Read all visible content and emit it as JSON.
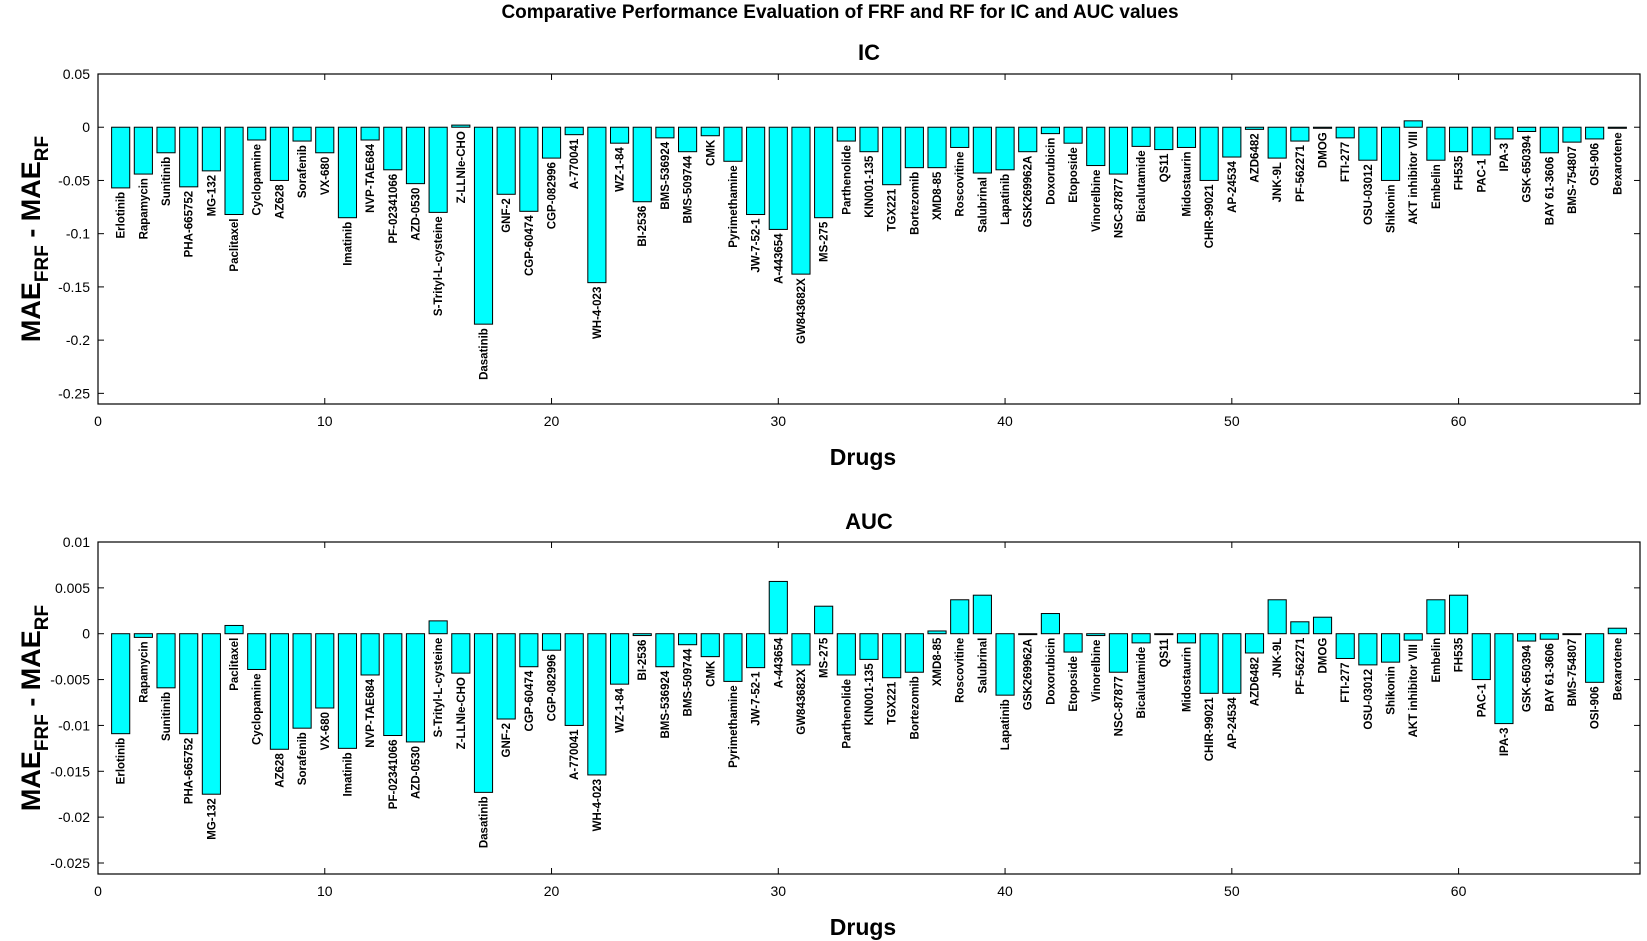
{
  "chart_data": {
    "type": "bar",
    "title": "Comparative Performance Evaluation of FRF and RF for IC and AUC values",
    "drugs": [
      "Erlotinib",
      "Rapamycin",
      "Sunitinib",
      "PHA-665752",
      "MG-132",
      "Paclitaxel",
      "Cyclopamine",
      "AZ628",
      "Sorafenib",
      "VX-680",
      "Imatinib",
      "NVP-TAE684",
      "PF-02341066",
      "AZD-0530",
      "S-Trityl-L-cysteine",
      "Z-LLNle-CHO",
      "Dasatinib",
      "GNF-2",
      "CGP-60474",
      "CGP-082996",
      "A-770041",
      "WH-4-023",
      "WZ-1-84",
      "BI-2536",
      "BMS-536924",
      "BMS-509744",
      "CMK",
      "Pyrimethamine",
      "JW-7-52-1",
      "A-443654",
      "GW843682X",
      "MS-275",
      "Parthenolide",
      "KIN001-135",
      "TGX221",
      "Bortezomib",
      "XMD8-85",
      "Roscovitine",
      "Salubrinal",
      "Lapatinib",
      "GSK269962A",
      "Doxorubicin",
      "Etoposide",
      "Vinorelbine",
      "NSC-87877",
      "Bicalutamide",
      "QS11",
      "Midostaurin",
      "CHIR-99021",
      "AP-24534",
      "AZD6482",
      "JNK-9L",
      "PF-562271",
      "DMOG",
      "FTI-277",
      "OSU-03012",
      "Shikonin",
      "AKT inhibitor VIII",
      "Embelin",
      "FH535",
      "PAC-1",
      "IPA-3",
      "GSK-650394",
      "BAY 61-3606",
      "BMS-754807",
      "OSI-906",
      "Bexarotene"
    ],
    "charts": [
      {
        "title": "IC",
        "xlabel": "Drugs",
        "ylabel_main": "MAE",
        "ylabel_sub1": "FRF",
        "ylabel_mid": " - MAE",
        "ylabel_sub2": "RF",
        "xlim": [
          0,
          68
        ],
        "ylim": [
          -0.26,
          0.05
        ],
        "yticks": [
          0.05,
          0,
          -0.05,
          -0.1,
          -0.15,
          -0.2,
          -0.25
        ],
        "ytick_labels": [
          "0.05",
          "0",
          "-0.05",
          "-0.1",
          "-0.15",
          "-0.2",
          "-0.25"
        ],
        "xticks": [
          0,
          10,
          20,
          30,
          40,
          50,
          60
        ],
        "xtick_labels": [
          "0",
          "10",
          "20",
          "30",
          "40",
          "50",
          "60"
        ],
        "label_anchor": "axis",
        "values": [
          -0.057,
          -0.044,
          -0.024,
          -0.056,
          -0.041,
          -0.082,
          -0.012,
          -0.05,
          -0.013,
          -0.024,
          -0.085,
          -0.012,
          -0.04,
          -0.053,
          -0.08,
          0.002,
          -0.185,
          -0.063,
          -0.079,
          -0.029,
          -0.007,
          -0.146,
          -0.015,
          -0.07,
          -0.01,
          -0.023,
          -0.008,
          -0.032,
          -0.082,
          -0.096,
          -0.138,
          -0.085,
          -0.013,
          -0.023,
          -0.054,
          -0.038,
          -0.038,
          -0.019,
          -0.043,
          -0.04,
          -0.023,
          -0.006,
          -0.015,
          -0.036,
          -0.044,
          -0.018,
          -0.021,
          -0.019,
          -0.05,
          -0.028,
          -0.002,
          -0.029,
          -0.013,
          -0.001,
          -0.01,
          -0.031,
          -0.05,
          0.006,
          -0.031,
          -0.023,
          -0.026,
          -0.011,
          -0.004,
          -0.024,
          -0.014,
          -0.011,
          -0.001
        ]
      },
      {
        "title": "AUC",
        "xlabel": "Drugs",
        "ylabel_main": "MAE",
        "ylabel_sub1": "FRF",
        "ylabel_mid": " - MAE",
        "ylabel_sub2": "RF",
        "xlim": [
          0,
          68
        ],
        "ylim": [
          -0.0262,
          0.01
        ],
        "yticks": [
          0.01,
          0.005,
          0,
          -0.005,
          -0.01,
          -0.015,
          -0.02,
          -0.025
        ],
        "ytick_labels": [
          "0.01",
          "0.005",
          "0",
          "-0.005",
          "-0.01",
          "-0.015",
          "-0.02",
          "-0.025"
        ],
        "xticks": [
          0,
          10,
          20,
          30,
          40,
          50,
          60
        ],
        "xtick_labels": [
          "0",
          "10",
          "20",
          "30",
          "40",
          "50",
          "60"
        ],
        "label_anchor": "bar",
        "values": [
          -0.0109,
          -0.0004,
          -0.0059,
          -0.0109,
          -0.0175,
          0.0009,
          -0.0039,
          -0.0126,
          -0.0103,
          -0.0081,
          -0.0125,
          -0.0045,
          -0.0111,
          -0.0118,
          0.0014,
          -0.0043,
          -0.0173,
          -0.0093,
          -0.0036,
          -0.0018,
          -0.01,
          -0.0154,
          -0.0055,
          -0.0002,
          -0.0036,
          -0.0012,
          -0.0025,
          -0.0052,
          -0.0037,
          0.0057,
          -0.0034,
          0.003,
          -0.0045,
          -0.0028,
          -0.0048,
          -0.0042,
          0.0003,
          0.0037,
          0.0042,
          -0.0067,
          -0.0001,
          0.0022,
          -0.002,
          -0.0002,
          -0.0042,
          -0.001,
          -0.0001,
          -0.001,
          -0.0065,
          -0.0065,
          -0.0021,
          0.0037,
          0.0013,
          0.0018,
          -0.0027,
          -0.0034,
          -0.0031,
          -0.0007,
          0.0037,
          0.0042,
          -0.005,
          -0.0098,
          -0.0008,
          -0.0006,
          -0.0001,
          -0.0053,
          0.0006
        ]
      }
    ]
  }
}
